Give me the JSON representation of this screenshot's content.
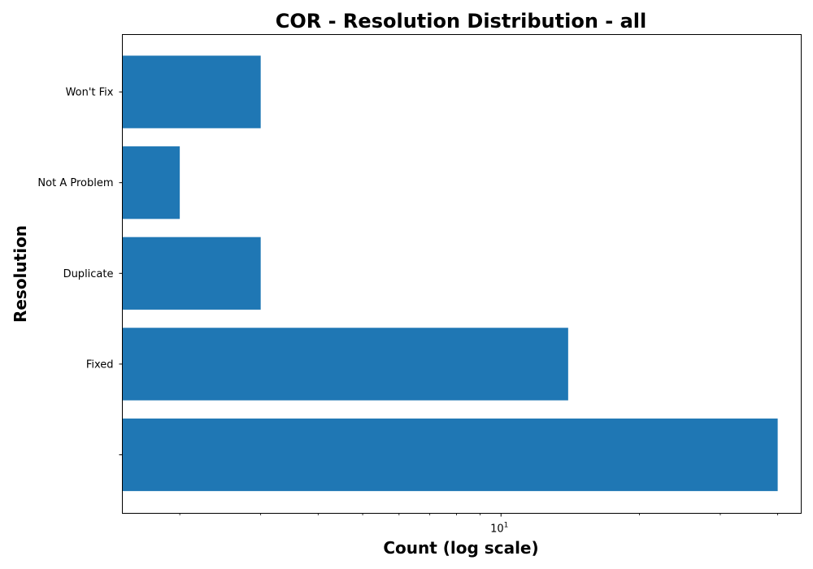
{
  "chart_data": {
    "type": "bar",
    "orientation": "horizontal",
    "title": "COR - Resolution Distribution - all",
    "xlabel": "Count (log scale)",
    "ylabel": "Resolution",
    "x_scale": "log",
    "xlim": [
      1.5,
      45
    ],
    "x_major_tick": {
      "value": 10,
      "base": "10",
      "exponent": "1"
    },
    "categories": [
      "",
      "Fixed",
      "Duplicate",
      "Not A Problem",
      "Won't Fix"
    ],
    "values": [
      40,
      14,
      3,
      2,
      3
    ],
    "bar_color": "#1f77b4",
    "grid": false,
    "legend": "none"
  }
}
